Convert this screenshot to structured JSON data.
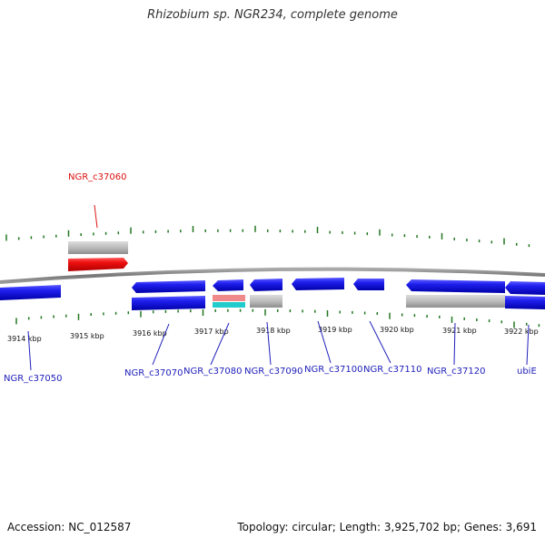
{
  "title": "Rhizobium sp. NGR234, complete genome",
  "footer": {
    "accession": "Accession: NC_012587",
    "summary": "Topology: circular; Length: 3,925,702 bp; Genes: 3,691"
  },
  "colors": {
    "forward_gene": "#0000dd",
    "reverse_gene": "#1515cc",
    "highlight": "#ee0000",
    "pseudo": "#bbbbbb",
    "pink": "#f08a8a",
    "cyan": "#22cccc",
    "backbone": "#888888",
    "tick": "#227722",
    "label_blue": "#2020bb",
    "label_red": "#dd1010"
  },
  "scale": {
    "labels": [
      {
        "text": "3914 kbp"
      },
      {
        "text": "3915 kbp"
      },
      {
        "text": "3916 kbp"
      },
      {
        "text": "3917 kbp"
      },
      {
        "text": "3918 kbp"
      },
      {
        "text": "3919 kbp"
      },
      {
        "text": "3920 kbp"
      },
      {
        "text": "3921 kbp"
      },
      {
        "text": "3922 kbp"
      }
    ]
  },
  "genes": [
    {
      "id": "NGR_c37050",
      "label": "NGR_c37050"
    },
    {
      "id": "NGR_c37060",
      "label": "NGR_c37060"
    },
    {
      "id": "NGR_c37070",
      "label": "NGR_c37070"
    },
    {
      "id": "NGR_c37080",
      "label": "NGR_c37080"
    },
    {
      "id": "NGR_c37090",
      "label": "NGR_c37090"
    },
    {
      "id": "NGR_c37100",
      "label": "NGR_c37100"
    },
    {
      "id": "NGR_c37110",
      "label": "NGR_c37110"
    },
    {
      "id": "NGR_c37120",
      "label": "NGR_c37120"
    },
    {
      "id": "ubiE",
      "label": "ubiE"
    }
  ]
}
